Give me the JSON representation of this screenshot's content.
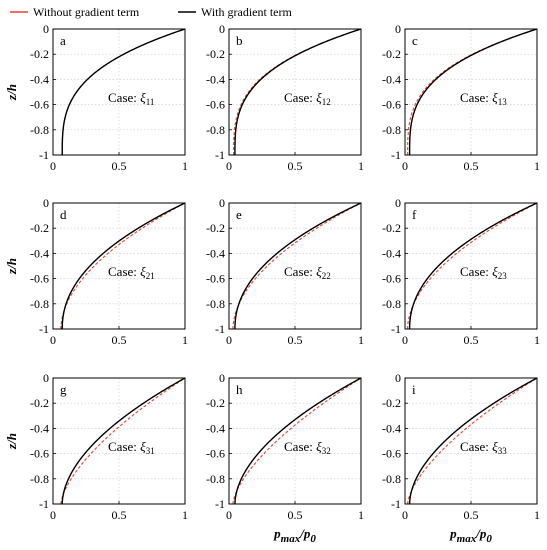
{
  "legend": [
    {
      "label": "Without gradient term",
      "color": "#e8412c",
      "style": "dashed"
    },
    {
      "label": "With gradient term",
      "color": "#000000",
      "style": "solid"
    }
  ],
  "axes": {
    "ylabel": "z/h",
    "xlabel_main": "p",
    "xlabel_sub1": "max",
    "xlabel_slash": "/",
    "xlabel_main2": "p",
    "xlabel_sub2": "0"
  },
  "chart_data": [
    {
      "type": "line",
      "panel": "a",
      "case": "Case: ",
      "case_symbol": "ξ",
      "case_sub": "11",
      "xlim": [
        0,
        1
      ],
      "ylim": [
        -1,
        0
      ],
      "xticks": [
        0,
        0.5,
        1
      ],
      "yticks": [
        0,
        -0.2,
        -0.4,
        -0.6,
        -0.8,
        -1
      ],
      "series": [
        {
          "name": "Without gradient term",
          "x0": 0.07,
          "power": 3.1
        },
        {
          "name": "With gradient term",
          "x0": 0.07,
          "power": 3.1
        }
      ]
    },
    {
      "type": "line",
      "panel": "b",
      "case": "Case: ",
      "case_symbol": "ξ",
      "case_sub": "12",
      "xlim": [
        0,
        1
      ],
      "ylim": [
        -1,
        0
      ],
      "xticks": [
        0,
        0.5,
        1
      ],
      "yticks": [
        0,
        -0.2,
        -0.4,
        -0.6,
        -0.8,
        -1
      ],
      "series": [
        {
          "name": "Without gradient term",
          "x0": 0.035,
          "power": 3.1
        },
        {
          "name": "With gradient term",
          "x0": 0.045,
          "power": 3.1
        }
      ]
    },
    {
      "type": "line",
      "panel": "c",
      "case": "Case: ",
      "case_symbol": "ξ",
      "case_sub": "13",
      "xlim": [
        0,
        1
      ],
      "ylim": [
        -1,
        0
      ],
      "xticks": [
        0,
        0.5,
        1
      ],
      "yticks": [
        0,
        -0.2,
        -0.4,
        -0.6,
        -0.8,
        -1
      ],
      "series": [
        {
          "name": "Without gradient term",
          "x0": 0.02,
          "power": 3.1
        },
        {
          "name": "With gradient term",
          "x0": 0.035,
          "power": 3.1
        }
      ]
    },
    {
      "type": "line",
      "panel": "d",
      "case": "Case: ",
      "case_symbol": "ξ",
      "case_sub": "21",
      "xlim": [
        0,
        1
      ],
      "ylim": [
        -1,
        0
      ],
      "xticks": [
        0,
        0.5,
        1
      ],
      "yticks": [
        0,
        -0.2,
        -0.4,
        -0.6,
        -0.8,
        -1
      ],
      "series": [
        {
          "name": "Without gradient term",
          "x0": 0.06,
          "power": 1.9
        },
        {
          "name": "With gradient term",
          "x0": 0.07,
          "power": 2.15
        }
      ]
    },
    {
      "type": "line",
      "panel": "e",
      "case": "Case: ",
      "case_symbol": "ξ",
      "case_sub": "22",
      "xlim": [
        0,
        1
      ],
      "ylim": [
        -1,
        0
      ],
      "xticks": [
        0,
        0.5,
        1
      ],
      "yticks": [
        0,
        -0.2,
        -0.4,
        -0.6,
        -0.8,
        -1
      ],
      "series": [
        {
          "name": "Without gradient term",
          "x0": 0.03,
          "power": 1.9
        },
        {
          "name": "With gradient term",
          "x0": 0.045,
          "power": 2.15
        }
      ]
    },
    {
      "type": "line",
      "panel": "f",
      "case": "Case: ",
      "case_symbol": "ξ",
      "case_sub": "23",
      "xlim": [
        0,
        1
      ],
      "ylim": [
        -1,
        0
      ],
      "xticks": [
        0,
        0.5,
        1
      ],
      "yticks": [
        0,
        -0.2,
        -0.4,
        -0.6,
        -0.8,
        -1
      ],
      "series": [
        {
          "name": "Without gradient term",
          "x0": 0.02,
          "power": 1.9
        },
        {
          "name": "With gradient term",
          "x0": 0.035,
          "power": 2.15
        }
      ]
    },
    {
      "type": "line",
      "panel": "g",
      "case": "Case: ",
      "case_symbol": "ξ",
      "case_sub": "31",
      "xlim": [
        0,
        1
      ],
      "ylim": [
        -1,
        0
      ],
      "xticks": [
        0,
        0.5,
        1
      ],
      "yticks": [
        0,
        -0.2,
        -0.4,
        -0.6,
        -0.8,
        -1
      ],
      "series": [
        {
          "name": "Without gradient term",
          "x0": 0.06,
          "power": 1.55
        },
        {
          "name": "With gradient term",
          "x0": 0.07,
          "power": 1.85
        }
      ]
    },
    {
      "type": "line",
      "panel": "h",
      "case": "Case: ",
      "case_symbol": "ξ",
      "case_sub": "32",
      "xlim": [
        0,
        1
      ],
      "ylim": [
        -1,
        0
      ],
      "xticks": [
        0,
        0.5,
        1
      ],
      "yticks": [
        0,
        -0.2,
        -0.4,
        -0.6,
        -0.8,
        -1
      ],
      "series": [
        {
          "name": "Without gradient term",
          "x0": 0.03,
          "power": 1.55
        },
        {
          "name": "With gradient term",
          "x0": 0.045,
          "power": 1.85
        }
      ]
    },
    {
      "type": "line",
      "panel": "i",
      "case": "Case: ",
      "case_symbol": "ξ",
      "case_sub": "33",
      "xlim": [
        0,
        1
      ],
      "ylim": [
        -1,
        0
      ],
      "xticks": [
        0,
        0.5,
        1
      ],
      "yticks": [
        0,
        -0.2,
        -0.4,
        -0.6,
        -0.8,
        -1
      ],
      "series": [
        {
          "name": "Without gradient term",
          "x0": 0.02,
          "power": 1.55
        },
        {
          "name": "With gradient term",
          "x0": 0.035,
          "power": 1.85
        }
      ]
    }
  ]
}
